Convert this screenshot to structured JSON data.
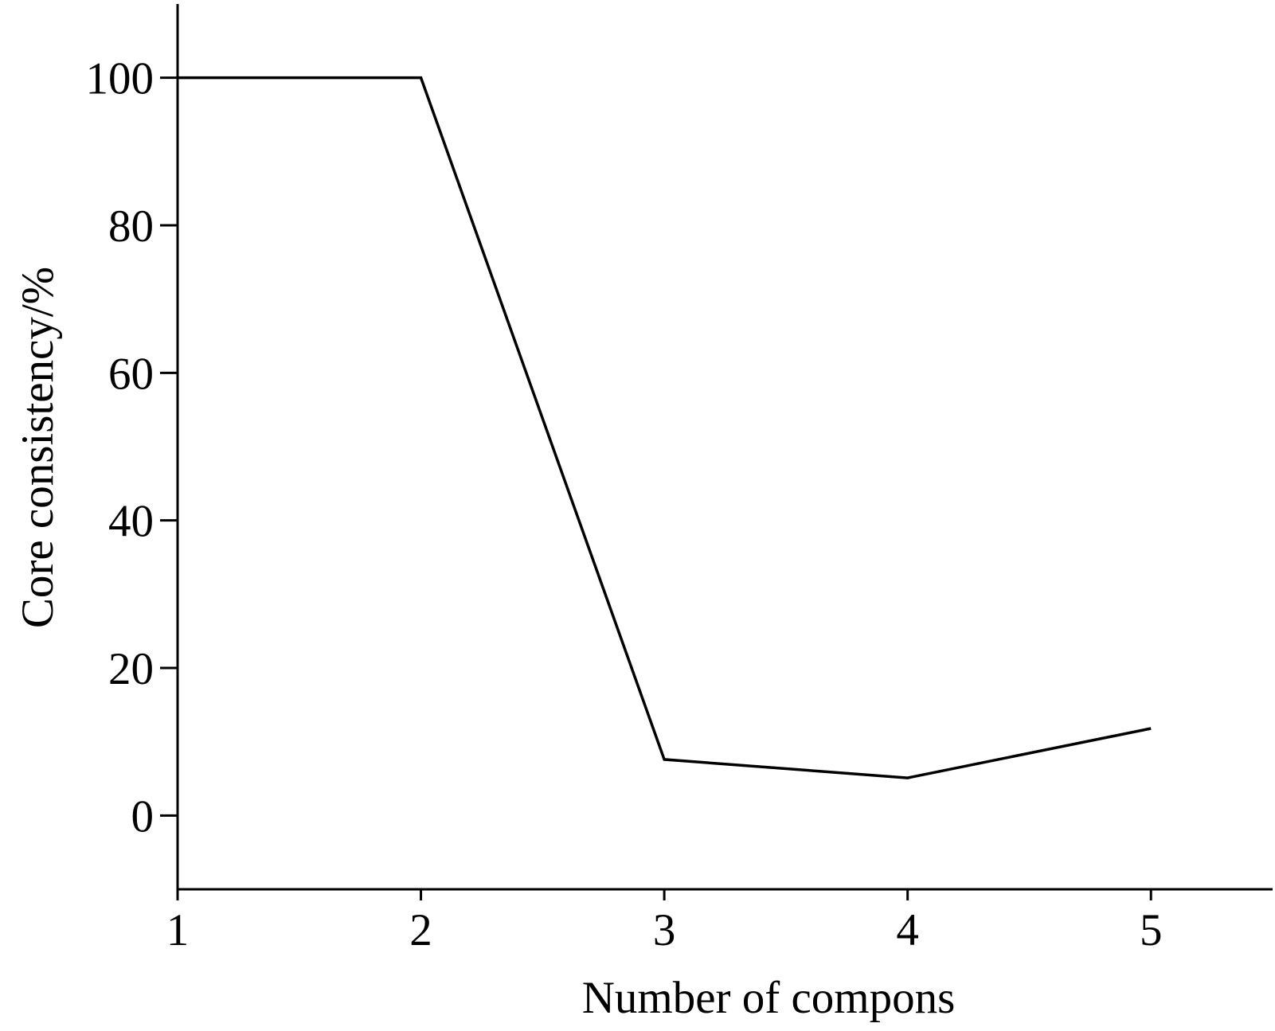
{
  "chart_data": {
    "type": "line",
    "x_label": "Number of compons",
    "y_label": "Core consistency/%",
    "x": [
      1,
      2,
      3,
      4,
      5
    ],
    "series": [
      {
        "color": "#000000",
        "values": [
          100,
          100,
          7.6,
          5.1,
          11.8
        ]
      }
    ],
    "xlim": [
      1,
      5.5
    ],
    "xticks": [
      1,
      2,
      3,
      4,
      5
    ],
    "ylim": [
      -10,
      110
    ],
    "yticks": [
      0,
      20,
      40,
      60,
      80,
      100
    ],
    "grid": false
  }
}
